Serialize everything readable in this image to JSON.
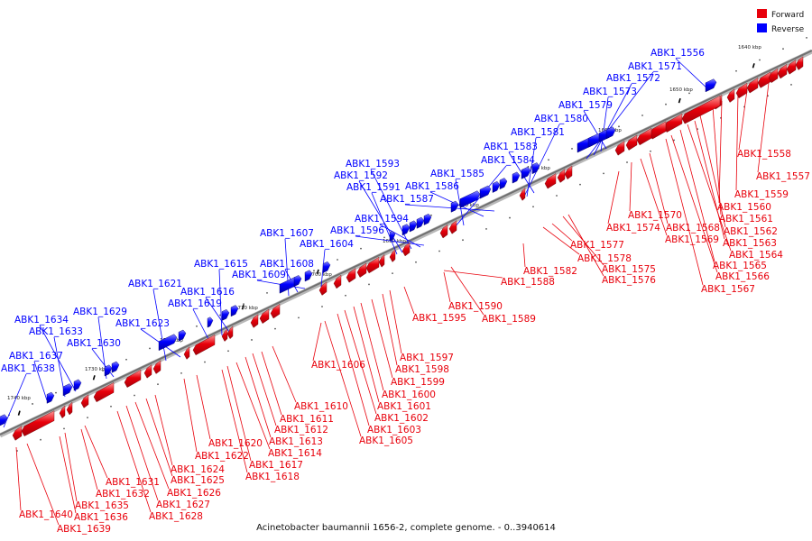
{
  "caption": "Acinetobacter baumannii 1656-2, complete genome. - 0..3940614",
  "colors": {
    "forward": "#e8000b",
    "reverse": "#0000ff",
    "backbone": "#888888"
  },
  "legend": [
    {
      "label": "Forward",
      "strand": "forward"
    },
    {
      "label": "Reverse",
      "strand": "reverse"
    }
  ],
  "kbp_ticks": [
    "1640 kbp",
    "1650 kbp",
    "1660 kbp",
    "1670 kbp",
    "1680 kbp",
    "1690 kbp",
    "1700 kbp",
    "1710 kbp",
    "1720 kbp",
    "1730 kbp",
    "1740 kbp"
  ],
  "reverse_genes": [
    "ABK1_1556",
    "ABK1_1571",
    "ABK1_1572",
    "ABK1_1573",
    "ABK1_1579",
    "ABK1_1580",
    "ABK1_1581",
    "ABK1_1583",
    "ABK1_1584",
    "ABK1_1585",
    "ABK1_1586",
    "ABK1_1587",
    "ABK1_1591",
    "ABK1_1592",
    "ABK1_1593",
    "ABK1_1594",
    "ABK1_1596",
    "ABK1_1604",
    "ABK1_1607",
    "ABK1_1608",
    "ABK1_1609",
    "ABK1_1615",
    "ABK1_1616",
    "ABK1_1619",
    "ABK1_1621",
    "ABK1_1623",
    "ABK1_1629",
    "ABK1_1630",
    "ABK1_1633",
    "ABK1_1634",
    "ABK1_1637",
    "ABK1_1638"
  ],
  "forward_genes": [
    "ABK1_1557",
    "ABK1_1558",
    "ABK1_1559",
    "ABK1_1560",
    "ABK1_1561",
    "ABK1_1562",
    "ABK1_1563",
    "ABK1_1564",
    "ABK1_1565",
    "ABK1_1566",
    "ABK1_1567",
    "ABK1_1568",
    "ABK1_1569",
    "ABK1_1570",
    "ABK1_1574",
    "ABK1_1575",
    "ABK1_1576",
    "ABK1_1577",
    "ABK1_1578",
    "ABK1_1582",
    "ABK1_1588",
    "ABK1_1589",
    "ABK1_1590",
    "ABK1_1595",
    "ABK1_1597",
    "ABK1_1598",
    "ABK1_1599",
    "ABK1_1600",
    "ABK1_1601",
    "ABK1_1602",
    "ABK1_1603",
    "ABK1_1605",
    "ABK1_1606",
    "ABK1_1610",
    "ABK1_1611",
    "ABK1_1612",
    "ABK1_1613",
    "ABK1_1614",
    "ABK1_1617",
    "ABK1_1618",
    "ABK1_1620",
    "ABK1_1622",
    "ABK1_1624",
    "ABK1_1625",
    "ABK1_1626",
    "ABK1_1627",
    "ABK1_1628",
    "ABK1_1631",
    "ABK1_1632",
    "ABK1_1635",
    "ABK1_1636",
    "ABK1_1639",
    "ABK1_1640"
  ]
}
